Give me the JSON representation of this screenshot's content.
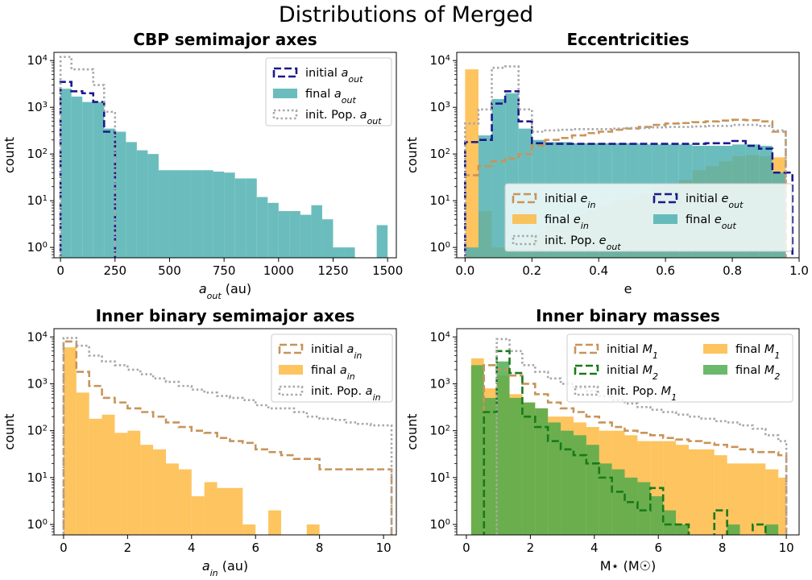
{
  "figure_title": "Distributions of Merged",
  "colors": {
    "teal": "#4aaeae",
    "navy": "#1a1a8c",
    "gray": "#a8a8a8",
    "orange": "#fdb73c",
    "tan": "#c8945a",
    "green": "#4aaa4a",
    "darkgreen": "#1a7a1a"
  },
  "chart_data": [
    {
      "type": "histogram",
      "title": "CBP semimajor axes",
      "xlabel": "a_out (au)",
      "ylabel": "count",
      "yscale": "log",
      "xlim": [
        -30,
        1540
      ],
      "ylim": [
        0.6,
        15000
      ],
      "xticks": [
        "0",
        "250",
        "500",
        "750",
        "1000",
        "1250",
        "1500"
      ],
      "yticks": [
        "10^0",
        "10^1",
        "10^2",
        "10^3",
        "10^4"
      ],
      "legend_position": "upper right",
      "series": [
        {
          "name": "final a_out",
          "style": "fill",
          "color": "teal",
          "edges": [
            0,
            50,
            100,
            150,
            200,
            250,
            300,
            350,
            400,
            450,
            500,
            550,
            600,
            650,
            700,
            750,
            800,
            850,
            900,
            950,
            1000,
            1050,
            1100,
            1150,
            1200,
            1250,
            1300,
            1350,
            1400,
            1450,
            1500
          ],
          "values": [
            2500,
            1700,
            1300,
            1300,
            350,
            300,
            180,
            120,
            100,
            45,
            45,
            45,
            45,
            45,
            42,
            40,
            30,
            30,
            12,
            9,
            6,
            6,
            5,
            8,
            4,
            1,
            1,
            0,
            0,
            3
          ]
        },
        {
          "name": "initial a_out",
          "style": "dash",
          "color": "navy",
          "edges": [
            0,
            50,
            100,
            150,
            200,
            250
          ],
          "values": [
            3500,
            2200,
            2000,
            1300,
            300
          ]
        },
        {
          "name": "init. Pop. a_out",
          "style": "dot",
          "color": "gray",
          "edges": [
            0,
            50,
            100,
            150,
            200,
            250
          ],
          "values": [
            12000,
            6500,
            6500,
            3000,
            800
          ]
        }
      ]
    },
    {
      "type": "histogram",
      "title": "Eccentricities",
      "xlabel": "e",
      "ylabel": "count",
      "yscale": "log",
      "xlim": [
        -0.025,
        1.0
      ],
      "ylim": [
        0.6,
        15000
      ],
      "xticks": [
        "0.0",
        "0.2",
        "0.4",
        "0.6",
        "0.8",
        "1.0"
      ],
      "yticks": [
        "10^0",
        "10^1",
        "10^2",
        "10^3",
        "10^4"
      ],
      "legend_position": "lower center",
      "series": [
        {
          "name": "final e_in",
          "style": "fill",
          "color": "orange",
          "edges": [
            0,
            0.04,
            0.08,
            0.12,
            0.16,
            0.2,
            0.24,
            0.28,
            0.32,
            0.36,
            0.4,
            0.44,
            0.48,
            0.52,
            0.56,
            0.6,
            0.64,
            0.68,
            0.72,
            0.76,
            0.8,
            0.84,
            0.88,
            0.92,
            0.96
          ],
          "values": [
            6500,
            6,
            1,
            1,
            1,
            2,
            3,
            4,
            5,
            6,
            8,
            10,
            11,
            14,
            18,
            22,
            28,
            45,
            55,
            70,
            90,
            95,
            90,
            85
          ]
        },
        {
          "name": "final e_out",
          "style": "fill",
          "color": "teal",
          "edges": [
            0,
            0.04,
            0.08,
            0.12,
            0.16,
            0.2,
            0.24,
            0.28,
            0.32,
            0.36,
            0.4,
            0.44,
            0.48,
            0.52,
            0.56,
            0.6,
            0.64,
            0.68,
            0.72,
            0.76,
            0.8,
            0.84,
            0.88,
            0.92,
            0.96
          ],
          "values": [
            1,
            250,
            1500,
            2000,
            350,
            200,
            180,
            180,
            170,
            170,
            170,
            170,
            170,
            160,
            160,
            160,
            160,
            150,
            150,
            150,
            160,
            160,
            150,
            40
          ]
        },
        {
          "name": "initial e_in",
          "style": "dash",
          "color": "tan",
          "edges": [
            0,
            0.04,
            0.08,
            0.12,
            0.16,
            0.2,
            0.24,
            0.28,
            0.32,
            0.36,
            0.4,
            0.44,
            0.48,
            0.52,
            0.56,
            0.6,
            0.64,
            0.68,
            0.72,
            0.76,
            0.8,
            0.84,
            0.88,
            0.92,
            0.96
          ],
          "values": [
            35,
            55,
            70,
            80,
            100,
            150,
            200,
            220,
            250,
            280,
            300,
            330,
            350,
            380,
            420,
            450,
            460,
            480,
            500,
            520,
            540,
            530,
            500,
            300
          ]
        },
        {
          "name": "initial e_out",
          "style": "dash",
          "color": "navy",
          "edges": [
            0,
            0.04,
            0.08,
            0.12,
            0.16,
            0.2,
            0.24,
            0.28,
            0.32,
            0.36,
            0.4,
            0.44,
            0.48,
            0.52,
            0.56,
            0.6,
            0.64,
            0.68,
            0.72,
            0.76,
            0.8,
            0.84,
            0.88,
            0.92,
            0.96,
            0.98
          ],
          "values": [
            180,
            200,
            1200,
            2200,
            500,
            170,
            165,
            165,
            165,
            165,
            165,
            165,
            165,
            165,
            165,
            165,
            165,
            165,
            170,
            170,
            190,
            150,
            130,
            40,
            40
          ]
        },
        {
          "name": "init. Pop. e_out",
          "style": "dot",
          "color": "gray",
          "edges": [
            0,
            0.04,
            0.08,
            0.12,
            0.16,
            0.2,
            0.24,
            0.28,
            0.32,
            0.36,
            0.4,
            0.44,
            0.48,
            0.52,
            0.56,
            0.6,
            0.64,
            0.68,
            0.72,
            0.76,
            0.8,
            0.84,
            0.88,
            0.92,
            0.96
          ],
          "values": [
            450,
            900,
            7000,
            7500,
            900,
            300,
            320,
            330,
            340,
            340,
            340,
            350,
            360,
            360,
            370,
            380,
            380,
            390,
            400,
            400,
            420,
            420,
            400,
            320
          ]
        }
      ]
    },
    {
      "type": "histogram",
      "title": "Inner binary semimajor axes",
      "xlabel": "a_in (au)",
      "ylabel": "count",
      "yscale": "log",
      "xlim": [
        -0.3,
        10.4
      ],
      "ylim": [
        0.6,
        15000
      ],
      "xticks": [
        "0",
        "2",
        "4",
        "6",
        "8",
        "10"
      ],
      "yticks": [
        "10^0",
        "10^1",
        "10^2",
        "10^3",
        "10^4"
      ],
      "legend_position": "upper right",
      "series": [
        {
          "name": "final a_in",
          "style": "fill",
          "color": "orange",
          "edges": [
            0,
            0.4,
            0.8,
            1.2,
            1.6,
            2.0,
            2.4,
            2.8,
            3.2,
            3.6,
            4.0,
            4.4,
            4.8,
            5.2,
            5.6,
            6.0,
            6.4,
            6.8,
            7.2,
            7.6,
            8.0
          ],
          "values": [
            6000,
            650,
            180,
            220,
            90,
            100,
            50,
            40,
            20,
            15,
            4,
            8,
            6,
            6,
            1,
            0,
            2,
            0,
            0,
            1
          ]
        },
        {
          "name": "initial a_in",
          "style": "dash",
          "color": "tan",
          "edges": [
            0,
            0.4,
            0.8,
            1.2,
            1.6,
            2.0,
            2.4,
            2.8,
            3.2,
            3.6,
            4.0,
            4.4,
            4.8,
            5.2,
            5.6,
            6.0,
            6.4,
            6.8,
            7.2,
            7.6,
            8.0,
            8.4,
            8.8,
            9.2,
            9.6,
            10.0,
            10.25
          ],
          "values": [
            8000,
            1800,
            900,
            500,
            400,
            300,
            250,
            200,
            150,
            120,
            100,
            90,
            70,
            60,
            55,
            40,
            35,
            30,
            25,
            25,
            15,
            15,
            15,
            15,
            15,
            15
          ]
        },
        {
          "name": "init. Pop. a_in",
          "style": "dot",
          "color": "gray",
          "edges": [
            0,
            0.4,
            0.8,
            1.2,
            1.6,
            2.0,
            2.4,
            2.8,
            3.2,
            3.6,
            4.0,
            4.4,
            4.8,
            5.2,
            5.6,
            6.0,
            6.4,
            6.8,
            7.2,
            7.6,
            8.0,
            8.4,
            8.8,
            9.2,
            9.6,
            10.0,
            10.25
          ],
          "values": [
            9500,
            6500,
            4000,
            3000,
            2500,
            2000,
            1600,
            1300,
            1100,
            900,
            750,
            650,
            550,
            500,
            450,
            350,
            300,
            300,
            250,
            200,
            180,
            170,
            150,
            140,
            130,
            130
          ]
        }
      ]
    },
    {
      "type": "histogram",
      "title": "Inner binary masses",
      "xlabel": "M⋆ (M☉)",
      "ylabel": "count",
      "yscale": "log",
      "xlim": [
        -0.3,
        10.4
      ],
      "ylim": [
        0.6,
        15000
      ],
      "xticks": [
        "0",
        "2",
        "4",
        "6",
        "8",
        "10"
      ],
      "yticks": [
        "10^0",
        "10^1",
        "10^2",
        "10^3",
        "10^4"
      ],
      "legend_position": "upper right",
      "series": [
        {
          "name": "final M_1",
          "style": "fill",
          "color": "orange",
          "edges": [
            0.15,
            0.55,
            0.95,
            1.35,
            1.75,
            2.15,
            2.55,
            2.95,
            3.35,
            3.75,
            4.15,
            4.55,
            4.95,
            5.35,
            5.75,
            6.15,
            6.55,
            6.95,
            7.35,
            7.75,
            8.15,
            8.55,
            8.95,
            9.35,
            9.75,
            10.0
          ],
          "values": [
            3500,
            800,
            1500,
            600,
            400,
            300,
            200,
            200,
            150,
            120,
            100,
            100,
            80,
            60,
            60,
            60,
            50,
            40,
            40,
            30,
            20,
            20,
            20,
            15,
            10
          ]
        },
        {
          "name": "final M_2",
          "style": "fill",
          "color": "green",
          "edges": [
            0.15,
            0.55,
            0.95,
            1.35,
            1.75,
            2.15,
            2.55,
            2.95,
            3.35,
            3.75,
            4.15,
            4.55,
            4.95,
            5.35,
            5.75,
            6.15,
            6.55,
            6.95,
            7.35,
            7.75,
            8.15,
            8.55,
            8.95,
            9.35,
            9.75,
            10.0
          ],
          "values": [
            2500,
            500,
            3000,
            500,
            400,
            300,
            150,
            100,
            80,
            50,
            20,
            15,
            10,
            8,
            4,
            2,
            1,
            0,
            0,
            0,
            1,
            0,
            0,
            1,
            0
          ]
        },
        {
          "name": "initial M_1",
          "style": "dash",
          "color": "tan",
          "edges": [
            0.55,
            0.95,
            1.35,
            1.75,
            2.15,
            2.55,
            2.95,
            3.35,
            3.75,
            4.15,
            4.55,
            4.95,
            5.35,
            5.75,
            6.15,
            6.55,
            6.95,
            7.35,
            7.75,
            8.15,
            8.55,
            8.95,
            9.35,
            9.75,
            10.0
          ],
          "values": [
            2500,
            2000,
            1500,
            1000,
            600,
            400,
            300,
            250,
            200,
            150,
            120,
            100,
            90,
            80,
            70,
            65,
            60,
            55,
            50,
            45,
            40,
            35,
            35,
            30
          ]
        },
        {
          "name": "initial M_2",
          "style": "dash",
          "color": "darkgreen",
          "edges": [
            0.55,
            0.95,
            1.35,
            1.75,
            2.15,
            2.55,
            2.95,
            3.35,
            3.75,
            4.15,
            4.55,
            4.95,
            5.35,
            5.75,
            6.15,
            6.55,
            6.95,
            7.35,
            7.75,
            8.15,
            8.55,
            8.95,
            9.35,
            9.75
          ],
          "values": [
            250,
            5000,
            1700,
            200,
            120,
            60,
            40,
            30,
            20,
            10,
            5,
            3,
            2,
            6,
            1,
            1,
            0,
            0,
            2,
            0,
            0,
            1,
            0
          ]
        },
        {
          "name": "init. Pop. M_1",
          "style": "dot",
          "color": "gray",
          "edges": [
            0.95,
            1.35,
            1.75,
            2.15,
            2.55,
            2.95,
            3.35,
            3.75,
            4.15,
            4.55,
            4.95,
            5.35,
            5.75,
            6.15,
            6.55,
            6.95,
            7.35,
            7.75,
            8.15,
            8.55,
            8.95,
            9.35,
            9.75,
            10.0
          ],
          "values": [
            9000,
            5000,
            2500,
            1800,
            1300,
            1000,
            800,
            700,
            550,
            450,
            380,
            320,
            280,
            250,
            220,
            200,
            180,
            160,
            150,
            130,
            110,
            80,
            60
          ]
        }
      ]
    }
  ]
}
